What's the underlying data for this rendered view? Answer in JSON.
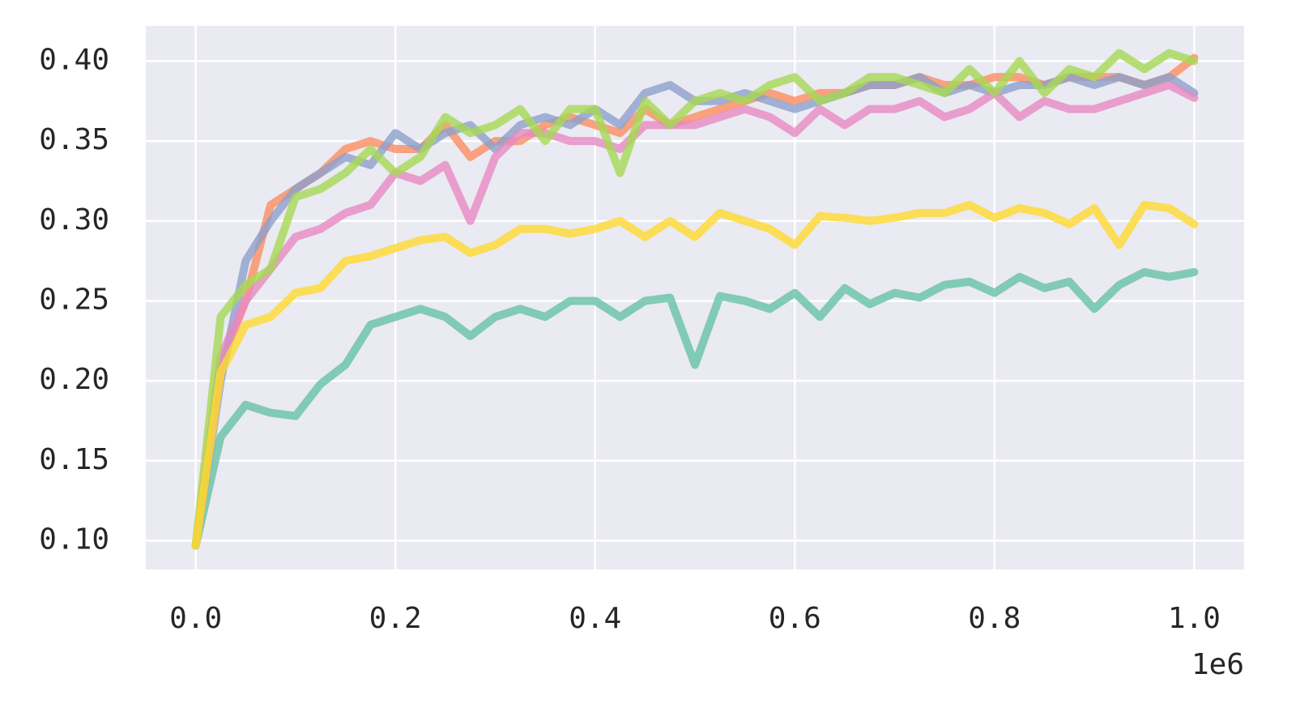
{
  "chart_data": {
    "type": "line",
    "x": [
      0,
      25000,
      50000,
      75000,
      100000,
      125000,
      150000,
      175000,
      200000,
      225000,
      250000,
      275000,
      300000,
      325000,
      350000,
      375000,
      400000,
      425000,
      450000,
      475000,
      500000,
      525000,
      550000,
      575000,
      600000,
      625000,
      650000,
      675000,
      700000,
      725000,
      750000,
      775000,
      800000,
      825000,
      850000,
      875000,
      900000,
      925000,
      950000,
      975000,
      1000000
    ],
    "series": [
      {
        "color": "#66c2a5",
        "values": [
          0.097,
          0.165,
          0.185,
          0.18,
          0.178,
          0.198,
          0.21,
          0.235,
          0.24,
          0.245,
          0.24,
          0.228,
          0.24,
          0.245,
          0.24,
          0.25,
          0.25,
          0.24,
          0.25,
          0.252,
          0.21,
          0.253,
          0.25,
          0.245,
          0.255,
          0.24,
          0.258,
          0.248,
          0.255,
          0.252,
          0.26,
          0.262,
          0.255,
          0.265,
          0.258,
          0.262,
          0.245,
          0.26,
          0.268,
          0.265,
          0.268
        ]
      },
      {
        "color": "#fc8d62",
        "values": [
          0.097,
          0.21,
          0.25,
          0.31,
          0.32,
          0.33,
          0.345,
          0.35,
          0.345,
          0.345,
          0.36,
          0.34,
          0.35,
          0.35,
          0.36,
          0.365,
          0.36,
          0.355,
          0.37,
          0.36,
          0.365,
          0.37,
          0.375,
          0.38,
          0.375,
          0.38,
          0.38,
          0.385,
          0.385,
          0.39,
          0.385,
          0.385,
          0.39,
          0.39,
          0.385,
          0.39,
          0.39,
          0.39,
          0.385,
          0.39,
          0.402
        ]
      },
      {
        "color": "#8da0cb",
        "values": [
          0.097,
          0.2,
          0.275,
          0.3,
          0.32,
          0.33,
          0.34,
          0.335,
          0.355,
          0.345,
          0.355,
          0.36,
          0.345,
          0.36,
          0.365,
          0.36,
          0.37,
          0.36,
          0.38,
          0.385,
          0.375,
          0.375,
          0.38,
          0.375,
          0.37,
          0.375,
          0.38,
          0.385,
          0.385,
          0.39,
          0.38,
          0.385,
          0.38,
          0.385,
          0.385,
          0.39,
          0.385,
          0.39,
          0.385,
          0.39,
          0.38
        ]
      },
      {
        "color": "#e78ac3",
        "values": [
          0.097,
          0.215,
          0.25,
          0.27,
          0.29,
          0.295,
          0.305,
          0.31,
          0.33,
          0.325,
          0.335,
          0.3,
          0.34,
          0.355,
          0.355,
          0.35,
          0.35,
          0.345,
          0.36,
          0.36,
          0.36,
          0.365,
          0.37,
          0.365,
          0.355,
          0.37,
          0.36,
          0.37,
          0.37,
          0.375,
          0.365,
          0.37,
          0.38,
          0.365,
          0.375,
          0.37,
          0.37,
          0.375,
          0.38,
          0.385,
          0.377
        ]
      },
      {
        "color": "#a6d854",
        "values": [
          0.097,
          0.24,
          0.26,
          0.27,
          0.315,
          0.32,
          0.33,
          0.345,
          0.33,
          0.34,
          0.365,
          0.355,
          0.36,
          0.37,
          0.35,
          0.37,
          0.37,
          0.33,
          0.375,
          0.36,
          0.375,
          0.38,
          0.375,
          0.385,
          0.39,
          0.375,
          0.38,
          0.39,
          0.39,
          0.385,
          0.38,
          0.395,
          0.38,
          0.4,
          0.38,
          0.395,
          0.39,
          0.405,
          0.395,
          0.405,
          0.4
        ]
      },
      {
        "color": "#ffd92f",
        "values": [
          0.097,
          0.205,
          0.235,
          0.24,
          0.255,
          0.258,
          0.275,
          0.278,
          0.283,
          0.288,
          0.29,
          0.28,
          0.285,
          0.295,
          0.295,
          0.292,
          0.295,
          0.3,
          0.29,
          0.3,
          0.29,
          0.305,
          0.3,
          0.295,
          0.285,
          0.303,
          0.302,
          0.3,
          0.302,
          0.305,
          0.305,
          0.31,
          0.302,
          0.308,
          0.305,
          0.298,
          0.308,
          0.285,
          0.31,
          0.308,
          0.298
        ]
      }
    ],
    "xlim": [
      -50000,
      1050000
    ],
    "xticks": [
      {
        "value": 0,
        "label": "0.0"
      },
      {
        "value": 200000,
        "label": "0.2"
      },
      {
        "value": 400000,
        "label": "0.4"
      },
      {
        "value": 600000,
        "label": "0.6"
      },
      {
        "value": 800000,
        "label": "0.8"
      },
      {
        "value": 1000000,
        "label": "1.0"
      }
    ],
    "x_offset_label": "1e6",
    "ylim": [
      0.082,
      0.422
    ],
    "yticks": [
      {
        "value": 0.1,
        "label": "0.10"
      },
      0.15,
      {
        "value": 0.2,
        "label": "0.20"
      },
      0.25,
      {
        "value": 0.3,
        "label": "0.30"
      },
      0.35,
      {
        "value": 0.4,
        "label": "0.40"
      }
    ],
    "grid": true
  }
}
